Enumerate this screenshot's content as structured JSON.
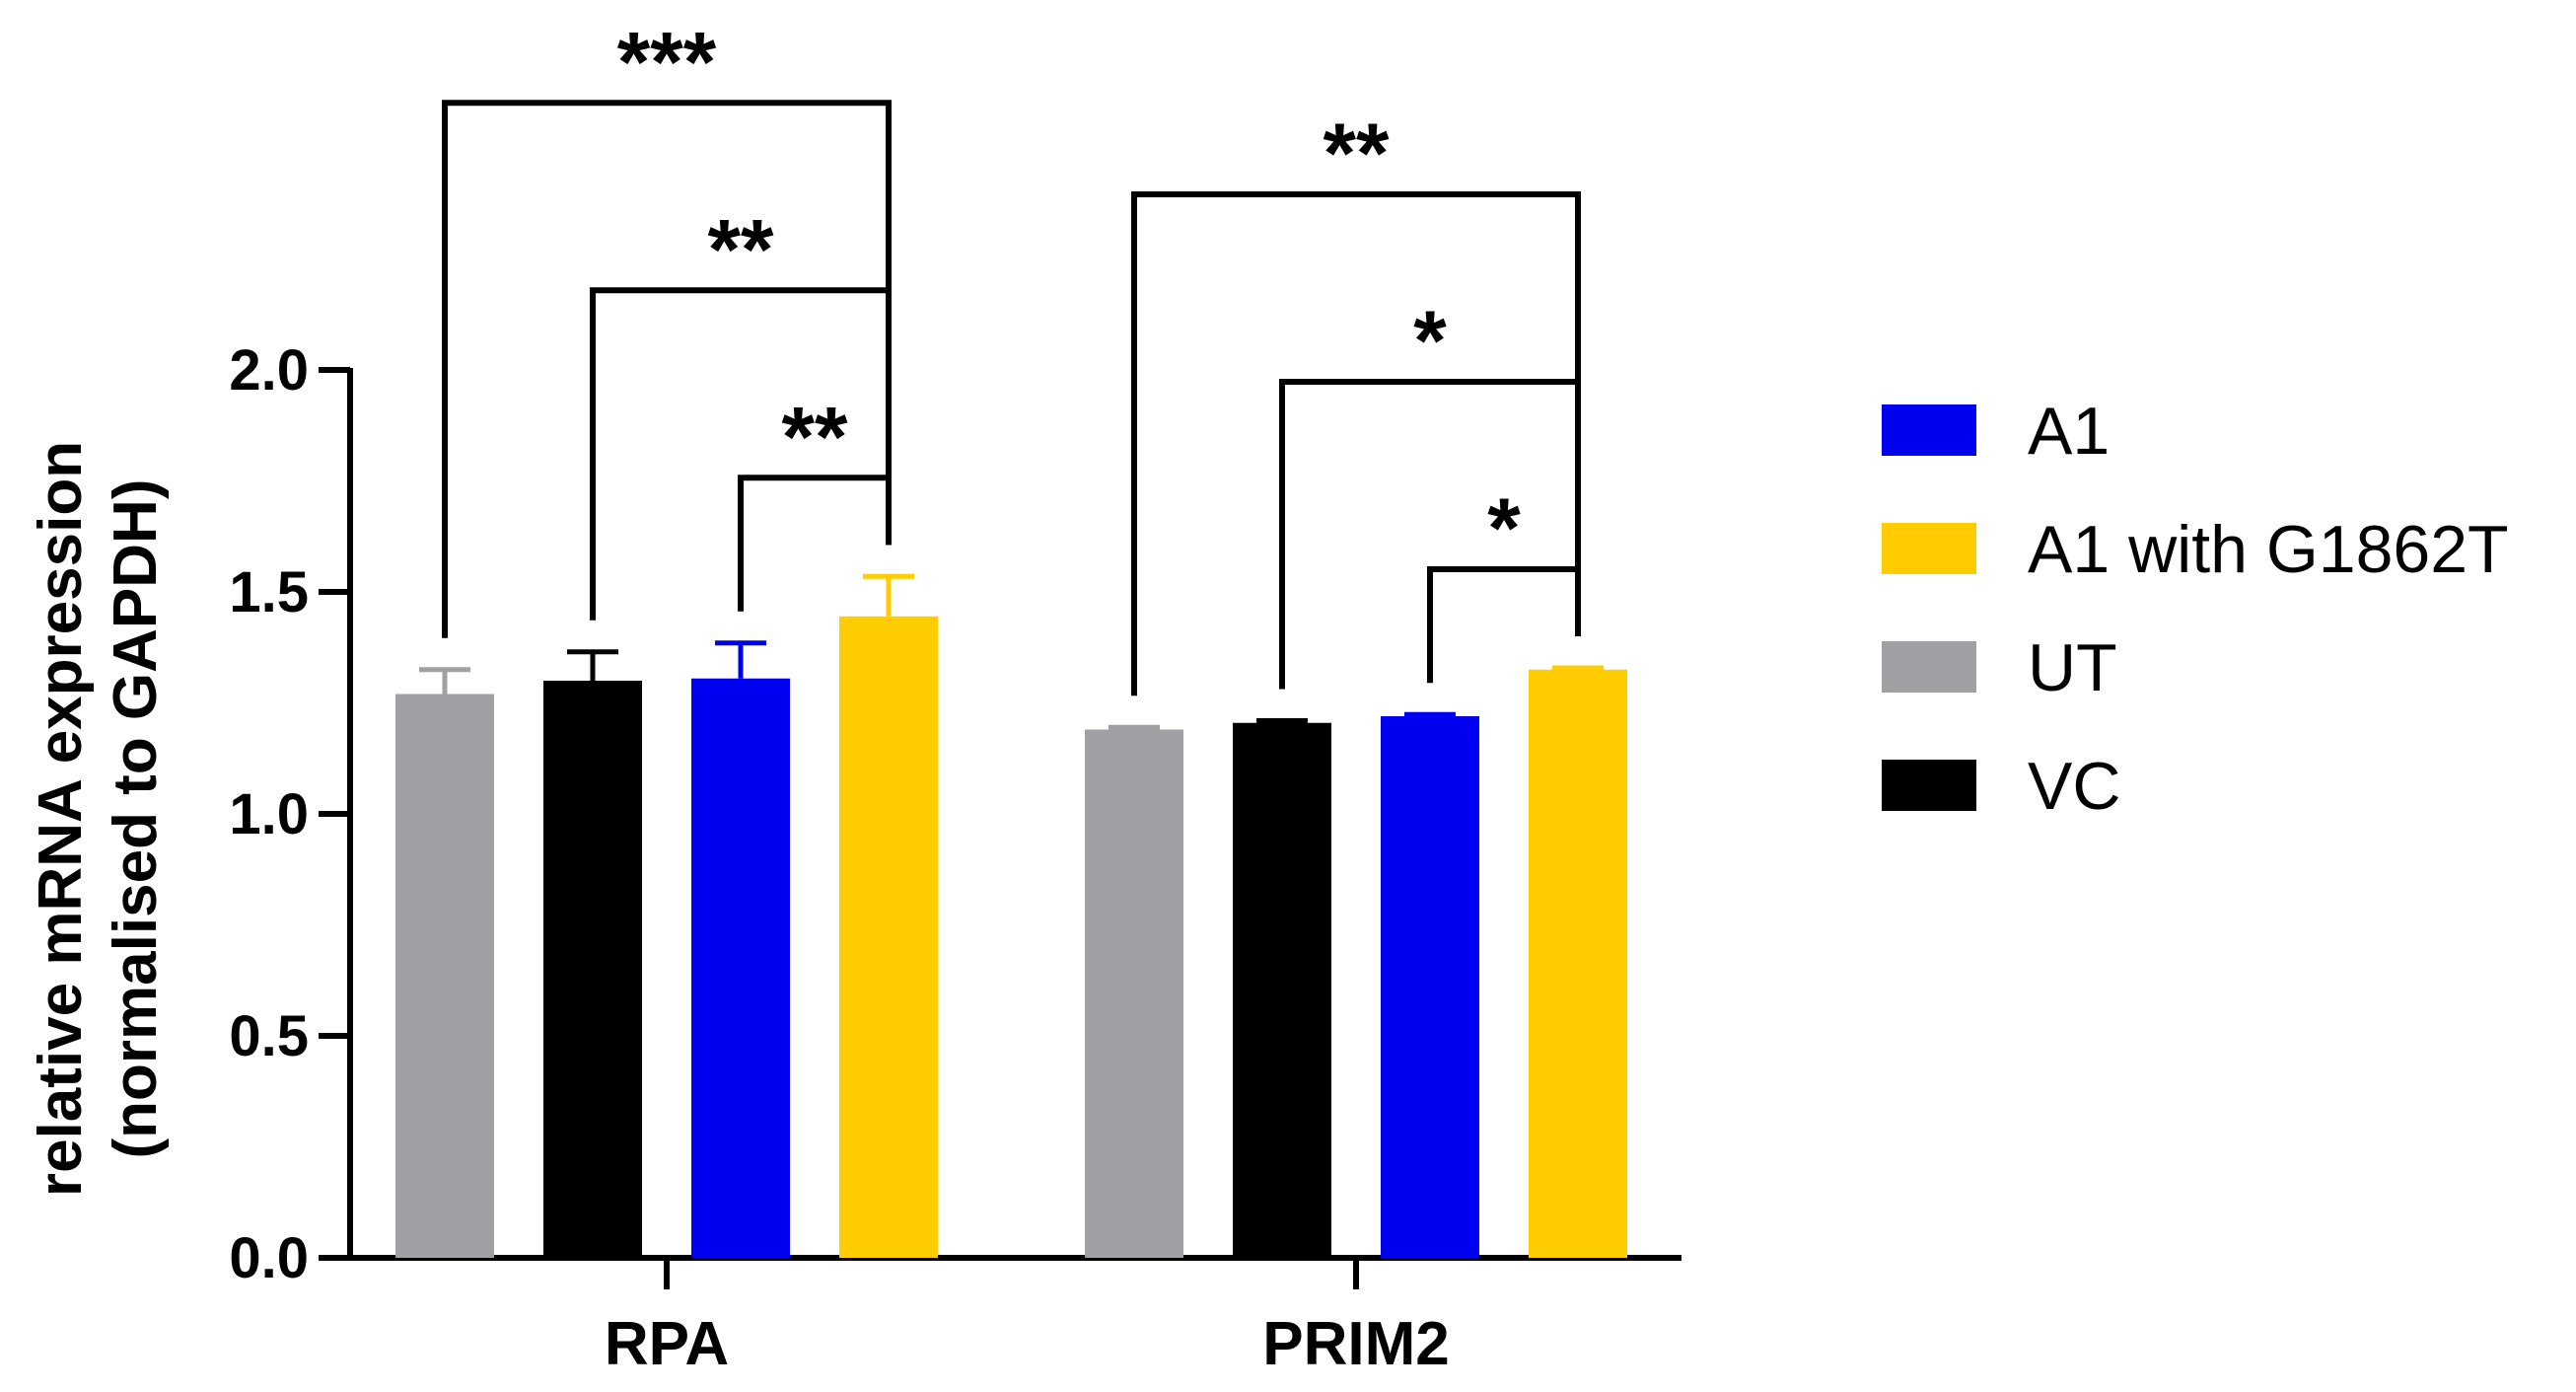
{
  "chart_data": {
    "type": "bar",
    "ylabel": "relative mRNA expression",
    "ylabel_sub": "(normalised to GAPDH)",
    "xlabel": "",
    "ylim": [
      0,
      2.0
    ],
    "yticks": [
      "0.0",
      "0.5",
      "1.0",
      "1.5",
      "2.0"
    ],
    "yticks_values": [
      0,
      0.5,
      1.0,
      1.5,
      2.0
    ],
    "categories": [
      "RPA",
      "PRIM2"
    ],
    "bar_order": [
      "UT",
      "VC",
      "A1",
      "A1 with G1862T"
    ],
    "series": [
      {
        "name": "UT",
        "color": "#a0a0a4",
        "values": [
          1.27,
          1.19
        ],
        "errors": [
          0.055,
          0.005
        ]
      },
      {
        "name": "VC",
        "color": "#000000",
        "values": [
          1.3,
          1.205
        ],
        "errors": [
          0.065,
          0.005
        ]
      },
      {
        "name": "A1",
        "color": "#0000f0",
        "values": [
          1.305,
          1.22
        ],
        "errors": [
          0.08,
          0.004
        ]
      },
      {
        "name": "A1 with G1862T",
        "color": "#ffcc00",
        "values": [
          1.445,
          1.325
        ],
        "errors": [
          0.09,
          0.004
        ]
      }
    ],
    "legend": {
      "placement": "right",
      "order": [
        "A1",
        "A1 with G1862T",
        "UT",
        "VC"
      ]
    },
    "significance": [
      {
        "category": 0,
        "from": "UT",
        "to": "A1 with G1862T",
        "label": "***"
      },
      {
        "category": 0,
        "from": "VC",
        "to": "A1 with G1862T",
        "label": "**"
      },
      {
        "category": 0,
        "from": "A1",
        "to": "A1 with G1862T",
        "label": "**"
      },
      {
        "category": 1,
        "from": "UT",
        "to": "A1 with G1862T",
        "label": "**"
      },
      {
        "category": 1,
        "from": "VC",
        "to": "A1 with G1862T",
        "label": "*"
      },
      {
        "category": 1,
        "from": "A1",
        "to": "A1 with G1862T",
        "label": "*"
      }
    ],
    "grid": false
  }
}
